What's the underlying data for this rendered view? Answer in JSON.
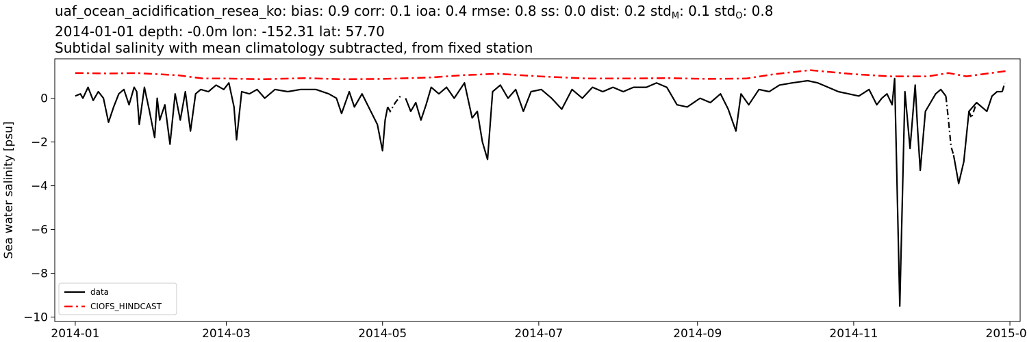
{
  "header": {
    "line1": {
      "main": "uaf_ocean_acidification_resea_ko: bias: 0.9  corr: 0.1  ioa: 0.4  rmse: 0.8  ss: 0.0  dist: 0.2  std",
      "sub_m": "M",
      "mid": ": 0.1  std",
      "sub_o": "O",
      "end": ": 0.8"
    },
    "line2": "2014-01-01 depth: -0.0m lon: -152.31 lat: 57.70",
    "line3": "Subtidal salinity with mean climatology subtracted, from fixed station"
  },
  "chart_data": {
    "type": "line",
    "title": "Subtidal salinity with mean climatology subtracted, from fixed station",
    "xlabel": "",
    "ylabel": "Sea water salinity [psu]",
    "xlim": [
      "2013-12-24",
      "2015-01-05"
    ],
    "ylim": [
      -10.2,
      1.8
    ],
    "xticks": [
      "2014-01",
      "2014-03",
      "2014-05",
      "2014-07",
      "2014-09",
      "2014-11",
      "2015-01"
    ],
    "yticks": [
      0,
      -2,
      -4,
      -6,
      -8,
      -10
    ],
    "ytick_labels": [
      "0",
      "−2",
      "−4",
      "−6",
      "−8",
      "−10"
    ],
    "grid": false,
    "legend_position": "lower-left",
    "colors": {
      "data": "#000000",
      "model": "#ff0000"
    },
    "series": [
      {
        "name": "data",
        "style": "solid",
        "segments": [
          [
            [
              "2014-01-01",
              0.1
            ],
            [
              "2014-01-03",
              0.2
            ],
            [
              "2014-01-04",
              0.0
            ],
            [
              "2014-01-06",
              0.5
            ],
            [
              "2014-01-08",
              -0.1
            ],
            [
              "2014-01-10",
              0.3
            ],
            [
              "2014-01-12",
              0.0
            ],
            [
              "2014-01-14",
              -1.1
            ],
            [
              "2014-01-16",
              -0.4
            ],
            [
              "2014-01-18",
              0.2
            ],
            [
              "2014-01-20",
              0.4
            ],
            [
              "2014-01-22",
              -0.3
            ],
            [
              "2014-01-24",
              0.5
            ],
            [
              "2014-01-25",
              0.3
            ],
            [
              "2014-01-26",
              -1.2
            ],
            [
              "2014-01-28",
              0.5
            ],
            [
              "2014-01-30",
              -0.6
            ],
            [
              "2014-02-01",
              -1.8
            ],
            [
              "2014-02-02",
              0.0
            ],
            [
              "2014-02-03",
              -1.0
            ],
            [
              "2014-02-05",
              -0.3
            ],
            [
              "2014-02-07",
              -2.1
            ],
            [
              "2014-02-09",
              0.2
            ],
            [
              "2014-02-11",
              -1.0
            ],
            [
              "2014-02-13",
              0.3
            ],
            [
              "2014-02-15",
              -1.5
            ],
            [
              "2014-02-17",
              0.2
            ],
            [
              "2014-02-19",
              0.4
            ],
            [
              "2014-02-22",
              0.3
            ],
            [
              "2014-02-25",
              0.6
            ],
            [
              "2014-02-28",
              0.4
            ],
            [
              "2014-03-02",
              0.7
            ],
            [
              "2014-03-04",
              -0.4
            ],
            [
              "2014-03-05",
              -1.9
            ],
            [
              "2014-03-07",
              0.3
            ],
            [
              "2014-03-10",
              0.2
            ],
            [
              "2014-03-13",
              0.4
            ],
            [
              "2014-03-16",
              0.0
            ],
            [
              "2014-03-20",
              0.4
            ],
            [
              "2014-03-25",
              0.3
            ],
            [
              "2014-03-30",
              0.4
            ],
            [
              "2014-04-05",
              0.4
            ],
            [
              "2014-04-10",
              0.2
            ],
            [
              "2014-04-13",
              0.0
            ],
            [
              "2014-04-15",
              -0.7
            ],
            [
              "2014-04-18",
              0.3
            ],
            [
              "2014-04-20",
              -0.4
            ],
            [
              "2014-04-23",
              0.2
            ],
            [
              "2014-04-26",
              -0.5
            ],
            [
              "2014-04-29",
              -1.2
            ],
            [
              "2014-05-01",
              -2.4
            ],
            [
              "2014-05-02",
              -1.0
            ],
            [
              "2014-05-03",
              -0.4
            ]
          ],
          [
            [
              "2014-05-10",
              0.0
            ],
            [
              "2014-05-12",
              -0.6
            ],
            [
              "2014-05-14",
              -0.2
            ],
            [
              "2014-05-16",
              -1.0
            ],
            [
              "2014-05-18",
              -0.3
            ],
            [
              "2014-05-20",
              0.5
            ],
            [
              "2014-05-23",
              0.2
            ],
            [
              "2014-05-26",
              0.5
            ],
            [
              "2014-05-29",
              0.0
            ],
            [
              "2014-06-02",
              0.7
            ],
            [
              "2014-06-05",
              -0.9
            ],
            [
              "2014-06-07",
              -0.6
            ],
            [
              "2014-06-09",
              -2.0
            ],
            [
              "2014-06-11",
              -2.8
            ],
            [
              "2014-06-13",
              0.3
            ],
            [
              "2014-06-16",
              0.6
            ],
            [
              "2014-06-19",
              0.0
            ],
            [
              "2014-06-22",
              0.4
            ],
            [
              "2014-06-25",
              -0.6
            ],
            [
              "2014-06-28",
              0.3
            ],
            [
              "2014-07-02",
              0.4
            ],
            [
              "2014-07-06",
              0.0
            ],
            [
              "2014-07-10",
              -0.5
            ],
            [
              "2014-07-14",
              0.4
            ],
            [
              "2014-07-18",
              0.0
            ],
            [
              "2014-07-22",
              0.5
            ],
            [
              "2014-07-26",
              0.3
            ],
            [
              "2014-07-30",
              0.5
            ],
            [
              "2014-08-03",
              0.3
            ],
            [
              "2014-08-07",
              0.5
            ],
            [
              "2014-08-12",
              0.5
            ],
            [
              "2014-08-16",
              0.7
            ],
            [
              "2014-08-20",
              0.5
            ],
            [
              "2014-08-24",
              -0.3
            ],
            [
              "2014-08-28",
              -0.4
            ],
            [
              "2014-09-02",
              0.0
            ],
            [
              "2014-09-06",
              -0.2
            ],
            [
              "2014-09-10",
              0.2
            ],
            [
              "2014-09-13",
              -0.5
            ],
            [
              "2014-09-16",
              -1.5
            ],
            [
              "2014-09-18",
              0.2
            ],
            [
              "2014-09-21",
              -0.3
            ],
            [
              "2014-09-25",
              0.4
            ],
            [
              "2014-09-29",
              0.3
            ],
            [
              "2014-10-03",
              0.6
            ],
            [
              "2014-10-08",
              0.7
            ],
            [
              "2014-10-14",
              0.8
            ],
            [
              "2014-10-18",
              0.7
            ],
            [
              "2014-10-22",
              0.5
            ],
            [
              "2014-10-26",
              0.3
            ],
            [
              "2014-10-30",
              0.2
            ],
            [
              "2014-11-03",
              0.1
            ],
            [
              "2014-11-07",
              0.4
            ],
            [
              "2014-11-10",
              -0.3
            ],
            [
              "2014-11-12",
              0.0
            ],
            [
              "2014-11-14",
              0.2
            ],
            [
              "2014-11-16",
              -0.3
            ],
            [
              "2014-11-17",
              0.9
            ],
            [
              "2014-11-19",
              -9.5
            ],
            [
              "2014-11-21",
              0.3
            ],
            [
              "2014-11-23",
              -2.3
            ],
            [
              "2014-11-25",
              0.6
            ],
            [
              "2014-11-26",
              -1.5
            ],
            [
              "2014-11-27",
              -3.3
            ],
            [
              "2014-11-29",
              -0.6
            ],
            [
              "2014-12-01",
              -0.2
            ],
            [
              "2014-12-03",
              0.2
            ],
            [
              "2014-12-05",
              0.4
            ],
            [
              "2014-12-07",
              0.1
            ]
          ],
          [
            [
              "2014-12-10",
              -2.6
            ],
            [
              "2014-12-12",
              -3.9
            ],
            [
              "2014-12-14",
              -2.9
            ],
            [
              "2014-12-16",
              -0.6
            ],
            [
              "2014-12-19",
              -0.2
            ],
            [
              "2014-12-23",
              -0.6
            ],
            [
              "2014-12-25",
              0.1
            ],
            [
              "2014-12-27",
              0.3
            ],
            [
              "2014-12-29",
              0.3
            ]
          ]
        ],
        "gap_segments": [
          [
            [
              "2014-05-03",
              -0.4
            ],
            [
              "2014-05-04",
              -0.6
            ],
            [
              "2014-05-06",
              -0.2
            ],
            [
              "2014-05-08",
              0.1
            ],
            [
              "2014-05-09",
              0.1
            ]
          ],
          [
            [
              "2014-12-07",
              0.1
            ],
            [
              "2014-12-08",
              -1.0
            ],
            [
              "2014-12-09",
              -2.2
            ],
            [
              "2014-12-10",
              -2.6
            ]
          ],
          [
            [
              "2014-12-16",
              -0.6
            ],
            [
              "2014-12-17",
              -0.9
            ],
            [
              "2014-12-19",
              -0.2
            ]
          ],
          [
            [
              "2014-12-29",
              0.3
            ],
            [
              "2014-12-30",
              0.7
            ]
          ]
        ]
      },
      {
        "name": "CIOFS_HINDCAST",
        "style": "dash-dot",
        "points": [
          [
            "2014-01-01",
            1.15
          ],
          [
            "2014-01-15",
            1.13
          ],
          [
            "2014-01-25",
            1.15
          ],
          [
            "2014-02-10",
            1.05
          ],
          [
            "2014-02-20",
            0.9
          ],
          [
            "2014-03-01",
            0.9
          ],
          [
            "2014-03-15",
            0.87
          ],
          [
            "2014-04-01",
            0.92
          ],
          [
            "2014-04-15",
            0.87
          ],
          [
            "2014-05-01",
            0.88
          ],
          [
            "2014-05-20",
            0.95
          ],
          [
            "2014-06-01",
            1.05
          ],
          [
            "2014-06-15",
            1.12
          ],
          [
            "2014-07-01",
            1.0
          ],
          [
            "2014-07-20",
            0.9
          ],
          [
            "2014-08-05",
            0.9
          ],
          [
            "2014-08-20",
            0.92
          ],
          [
            "2014-09-05",
            0.88
          ],
          [
            "2014-09-20",
            0.9
          ],
          [
            "2014-10-01",
            1.1
          ],
          [
            "2014-10-15",
            1.28
          ],
          [
            "2014-11-01",
            1.1
          ],
          [
            "2014-11-15",
            1.0
          ],
          [
            "2014-11-30",
            1.0
          ],
          [
            "2014-12-08",
            1.15
          ],
          [
            "2014-12-15",
            1.0
          ],
          [
            "2014-12-31",
            1.25
          ]
        ]
      }
    ]
  }
}
